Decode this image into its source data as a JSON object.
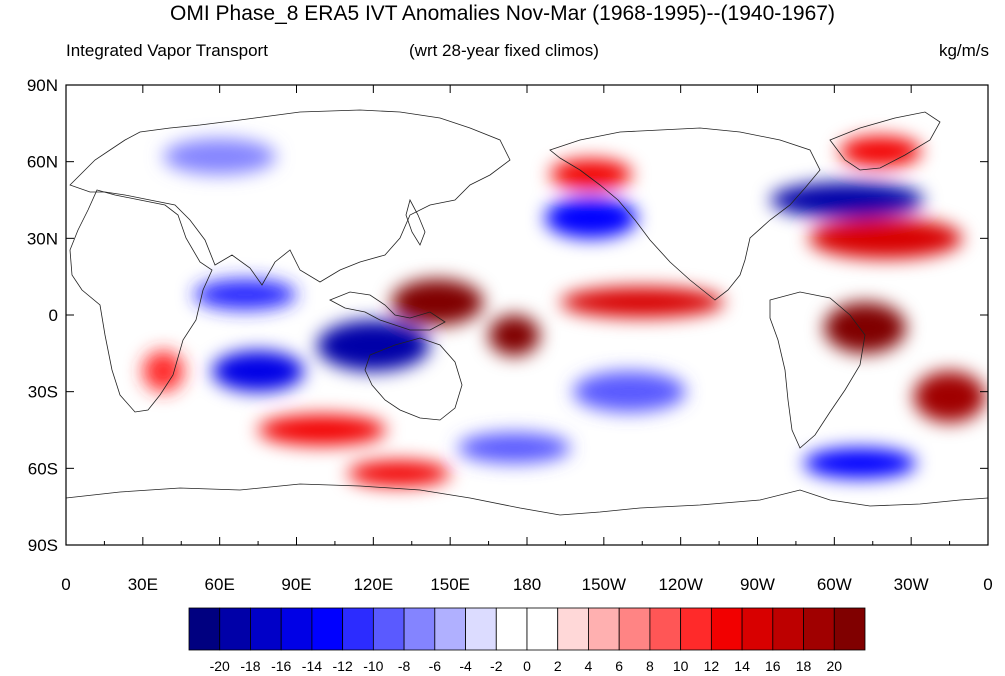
{
  "header": {
    "title": "OMI Phase_8 ERA5 IVT Anomalies Nov-Mar (1968-1995)--(1940-1967)",
    "left_string": "Integrated Vapor Transport",
    "center_string": "(wrt 28-year fixed climos)",
    "right_string": "kg/m/s"
  },
  "axes": {
    "x_ticks": [
      "0",
      "30E",
      "60E",
      "90E",
      "120E",
      "150E",
      "180",
      "150W",
      "120W",
      "90W",
      "60W",
      "30W",
      "0"
    ],
    "y_ticks": [
      "90N",
      "60N",
      "30N",
      "0",
      "30S",
      "60S",
      "90S"
    ]
  },
  "colorbar": {
    "labels": [
      "-20",
      "-18",
      "-16",
      "-14",
      "-12",
      "-10",
      "-8",
      "-6",
      "-4",
      "-2",
      "0",
      "2",
      "4",
      "6",
      "8",
      "10",
      "12",
      "14",
      "16",
      "18",
      "20"
    ],
    "colors": [
      "#000080",
      "#0000a8",
      "#0000c8",
      "#0000e6",
      "#0000ff",
      "#2c2cff",
      "#5a5aff",
      "#8484ff",
      "#b0b0ff",
      "#dcdcff",
      "#ffffff",
      "#ffffff",
      "#ffd8d8",
      "#ffb0b0",
      "#ff8484",
      "#ff5656",
      "#ff2a2a",
      "#f20000",
      "#d80000",
      "#bd0000",
      "#a00000",
      "#800000"
    ]
  },
  "map_data": {
    "projection": "cylindrical-equidistant",
    "lon_range": [
      0,
      360
    ],
    "lat_range": [
      -90,
      90
    ],
    "variable": "IVT anomaly",
    "units": "kg/m/s",
    "features": [
      {
        "type": "positive",
        "level": 20,
        "region": "tropical western Pacific / Maritime Continent east",
        "lon": 145,
        "lat": 5,
        "rlon": 18,
        "rlat": 9
      },
      {
        "type": "positive",
        "level": 20,
        "region": "South Pacific convergence zone",
        "lon": 175,
        "lat": -8,
        "rlon": 10,
        "rlat": 8
      },
      {
        "type": "positive",
        "level": 20,
        "region": "tropical South America",
        "lon": 312,
        "lat": -5,
        "rlon": 16,
        "rlat": 10
      },
      {
        "type": "positive",
        "level": 18,
        "region": "South Atlantic subtropics",
        "lon": 345,
        "lat": -32,
        "rlon": 14,
        "rlat": 10
      },
      {
        "type": "positive",
        "level": 14,
        "region": "tropical eastern Pacific",
        "lon": 225,
        "lat": 5,
        "rlon": 32,
        "rlat": 6
      },
      {
        "type": "positive",
        "level": 14,
        "region": "North Atlantic subtropics",
        "lon": 320,
        "lat": 30,
        "rlon": 30,
        "rlat": 8
      },
      {
        "type": "positive",
        "level": 12,
        "region": "southern Indian Ocean midlatitudes",
        "lon": 100,
        "lat": -45,
        "rlon": 25,
        "rlat": 6
      },
      {
        "type": "positive",
        "level": 12,
        "region": "southern Australia midlatitudes",
        "lon": 130,
        "lat": -62,
        "rlon": 20,
        "rlat": 5
      },
      {
        "type": "positive",
        "level": 10,
        "region": "southern Africa",
        "lon": 38,
        "lat": -22,
        "rlon": 8,
        "rlat": 8
      },
      {
        "type": "positive",
        "level": 12,
        "region": "Gulf of Alaska",
        "lon": 205,
        "lat": 55,
        "rlon": 16,
        "rlat": 6
      },
      {
        "type": "positive",
        "level": 12,
        "region": "Greenland / subpolar Atlantic",
        "lon": 318,
        "lat": 64,
        "rlon": 16,
        "rlat": 6
      },
      {
        "type": "negative",
        "level": -20,
        "region": "eastern Indian Ocean / north Australia",
        "lon": 120,
        "lat": -12,
        "rlon": 22,
        "rlat": 10
      },
      {
        "type": "negative",
        "level": -20,
        "region": "North Atlantic jet",
        "lon": 305,
        "lat": 45,
        "rlon": 30,
        "rlat": 7
      },
      {
        "type": "negative",
        "level": -16,
        "region": "South Indian Ocean",
        "lon": 75,
        "lat": -22,
        "rlon": 18,
        "rlat": 8
      },
      {
        "type": "negative",
        "level": -14,
        "region": "Southern Ocean, South Atlantic sector",
        "lon": 310,
        "lat": -58,
        "rlon": 22,
        "rlat": 6
      },
      {
        "type": "negative",
        "level": -14,
        "region": "North Pacific",
        "lon": 205,
        "lat": 38,
        "rlon": 18,
        "rlat": 8
      },
      {
        "type": "negative",
        "level": -12,
        "region": "Arabian Sea / northern Indian Ocean",
        "lon": 70,
        "lat": 8,
        "rlon": 20,
        "rlat": 6
      },
      {
        "type": "negative",
        "level": -10,
        "region": "central South Pacific",
        "lon": 220,
        "lat": -30,
        "rlon": 22,
        "rlat": 8
      },
      {
        "type": "negative",
        "level": -10,
        "region": "Southern Ocean, Pacific sector",
        "lon": 175,
        "lat": -52,
        "rlon": 22,
        "rlat": 6
      },
      {
        "type": "negative",
        "level": -8,
        "region": "Siberia / northern Eurasia",
        "lon": 60,
        "lat": 62,
        "rlon": 22,
        "rlat": 7
      }
    ]
  }
}
